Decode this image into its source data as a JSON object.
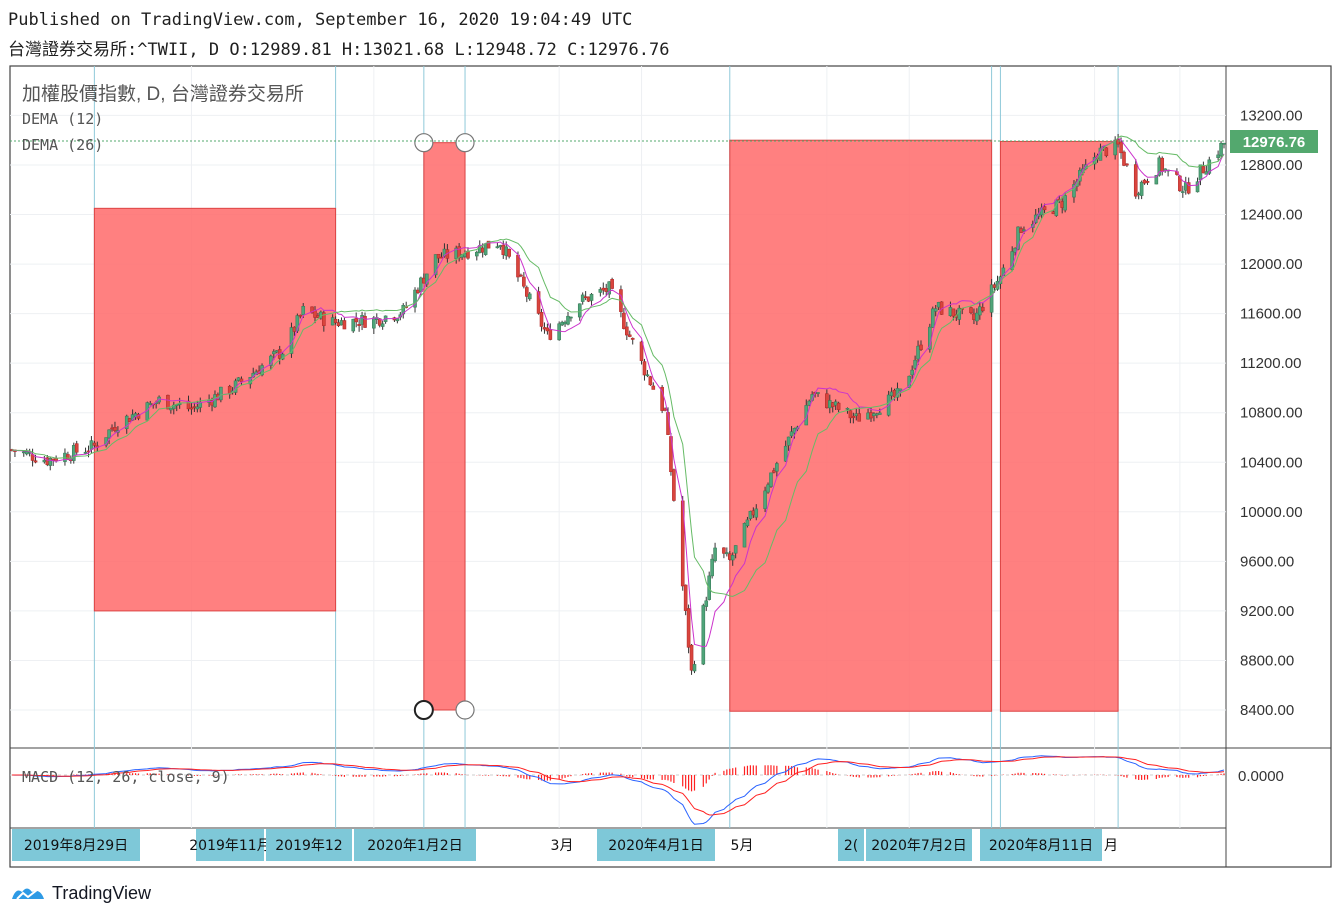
{
  "header": {
    "published_line": "Published on TradingView.com, September 16, 2020 19:04:49 UTC",
    "symbol_line": "台灣證券交易所:^TWII, D O:12989.81 H:13021.68 L:12948.72 C:12976.76"
  },
  "legend": {
    "title": "加權股價指數, D, 台灣證券交易所",
    "indicator1": "DEMA (12)",
    "indicator2": "DEMA (26)",
    "macd": "MACD (12, 26, close, 9)"
  },
  "price_axis": {
    "ticks": [
      "13200.00",
      "12800.00",
      "12400.00",
      "12000.00",
      "11600.00",
      "11200.00",
      "10800.00",
      "10400.00",
      "10000.00",
      "9600.00",
      "9200.00",
      "8800.00",
      "8400.00"
    ],
    "tick_values": [
      13200,
      12800,
      12400,
      12000,
      11600,
      11200,
      10800,
      10400,
      10000,
      9600,
      9200,
      8800,
      8400
    ],
    "last_price_label": "12976.76",
    "last_price": 12976.76
  },
  "macd_axis": {
    "tick": "0.0000"
  },
  "time_axis": {
    "labels": [
      {
        "text": "2019年8月29日",
        "highlight": true
      },
      {
        "text": "2019年11月",
        "highlight": true
      },
      {
        "text": "2019年12",
        "highlight": true
      },
      {
        "text": "2020年1月2日",
        "highlight": true
      },
      {
        "text": "3月",
        "highlight": false
      },
      {
        "text": "2020年4月1日",
        "highlight": true
      },
      {
        "text": "5月",
        "highlight": false
      },
      {
        "text": "2(",
        "highlight": true
      },
      {
        "text": "2020年7月2日",
        "highlight": true
      },
      {
        "text": "2020年8月11日",
        "highlight": true
      },
      {
        "text": "月",
        "highlight": false
      }
    ]
  },
  "chart_data": {
    "type": "candlestick",
    "title": "加權股價指數, D, 台灣證券交易所",
    "series": [
      {
        "name": "DEMA (12)",
        "color": "#cc33cc"
      },
      {
        "name": "DEMA (26)",
        "color": "#66bb66"
      }
    ],
    "x_start": "2019-08-01",
    "x_end": "2020-09-16",
    "ylim": [
      8200,
      13400
    ],
    "close_path": [
      [
        "2019-08-01",
        10500
      ],
      [
        "2019-08-13",
        10420
      ],
      [
        "2019-08-29",
        10530
      ],
      [
        "2019-09-05",
        10700
      ],
      [
        "2019-09-20",
        10900
      ],
      [
        "2019-10-01",
        10830
      ],
      [
        "2019-10-15",
        11000
      ],
      [
        "2019-11-01",
        11300
      ],
      [
        "2019-11-08",
        11620
      ],
      [
        "2019-11-18",
        11530
      ],
      [
        "2019-12-02",
        11550
      ],
      [
        "2019-12-12",
        11620
      ],
      [
        "2019-12-23",
        12050
      ],
      [
        "2020-01-02",
        12100
      ],
      [
        "2020-01-14",
        12180
      ],
      [
        "2020-01-30",
        11420
      ],
      [
        "2020-02-10",
        11700
      ],
      [
        "2020-02-20",
        11800
      ],
      [
        "2020-03-02",
        11200
      ],
      [
        "2020-03-10",
        10800
      ],
      [
        "2020-03-19",
        8700
      ],
      [
        "2020-03-27",
        9700
      ],
      [
        "2020-04-01",
        9600
      ],
      [
        "2020-04-15",
        10300
      ],
      [
        "2020-04-29",
        10950
      ],
      [
        "2020-05-14",
        10750
      ],
      [
        "2020-05-29",
        10950
      ],
      [
        "2020-06-10",
        11650
      ],
      [
        "2020-06-23",
        11550
      ],
      [
        "2020-07-02",
        11900
      ],
      [
        "2020-07-09",
        12300
      ],
      [
        "2020-07-23",
        12500
      ],
      [
        "2020-08-04",
        12900
      ],
      [
        "2020-08-11",
        12950
      ],
      [
        "2020-08-17",
        12600
      ],
      [
        "2020-08-25",
        12800
      ],
      [
        "2020-09-03",
        12600
      ],
      [
        "2020-09-16",
        12976.76
      ]
    ],
    "highlight_ranges": [
      {
        "x1": "2019-08-29",
        "x2": "2019-11-19",
        "y1": 9200,
        "y2": 12450
      },
      {
        "x1": "2019-12-19",
        "x2": "2020-01-02",
        "y1": 8400,
        "y2": 12980
      },
      {
        "x1": "2020-04-01",
        "x2": "2020-06-29",
        "y1": 8390,
        "y2": 13000
      },
      {
        "x1": "2020-07-02",
        "x2": "2020-08-11",
        "y1": 8390,
        "y2": 12990
      }
    ],
    "vertical_lines": [
      "2019-08-29",
      "2019-11-19",
      "2019-12-19",
      "2020-01-02",
      "2020-04-01",
      "2020-06-29",
      "2020-07-02",
      "2020-08-11"
    ],
    "colors": {
      "up": "#53b987",
      "down": "#eb4d5c",
      "highlight": "#ff6a6a",
      "macd": "#2962ff",
      "signal": "#ff2020",
      "price_label": "#53a86e",
      "axis_label_bg": "#7ec8d8"
    }
  },
  "footer": {
    "brand": "TradingView"
  }
}
